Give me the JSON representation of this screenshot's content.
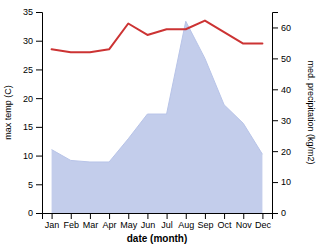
{
  "chart_data": {
    "type": "line",
    "categories": [
      "Jan",
      "Feb",
      "Mar",
      "Apr",
      "May",
      "Jun",
      "Jul",
      "Aug",
      "Sep",
      "Oct",
      "Nov",
      "Dec"
    ],
    "series": [
      {
        "type": "area",
        "axis": "y2",
        "color": "#b8c4e8",
        "values": [
          20.5,
          17.0,
          16.5,
          16.5,
          24.0,
          32.0,
          32.0,
          62.0,
          50.0,
          35.0,
          29.0,
          19.0
        ]
      },
      {
        "type": "line",
        "color": "#cc3333",
        "values": [
          28.5,
          28.0,
          28.0,
          28.5,
          33.0,
          31.0,
          32.0,
          32.0,
          33.5,
          31.5,
          29.5,
          29.5
        ]
      }
    ],
    "xlabel": "date (month)",
    "ylabel": "max temp (C)",
    "y2label": "med. precipitation (kg/m2)",
    "ylim": [
      0,
      35
    ],
    "yticks": [
      0,
      5,
      10,
      15,
      20,
      25,
      30,
      35
    ],
    "y2lim": [
      0,
      65
    ],
    "y2ticks": [
      0,
      10,
      20,
      30,
      40,
      50,
      60
    ],
    "grid": false
  }
}
